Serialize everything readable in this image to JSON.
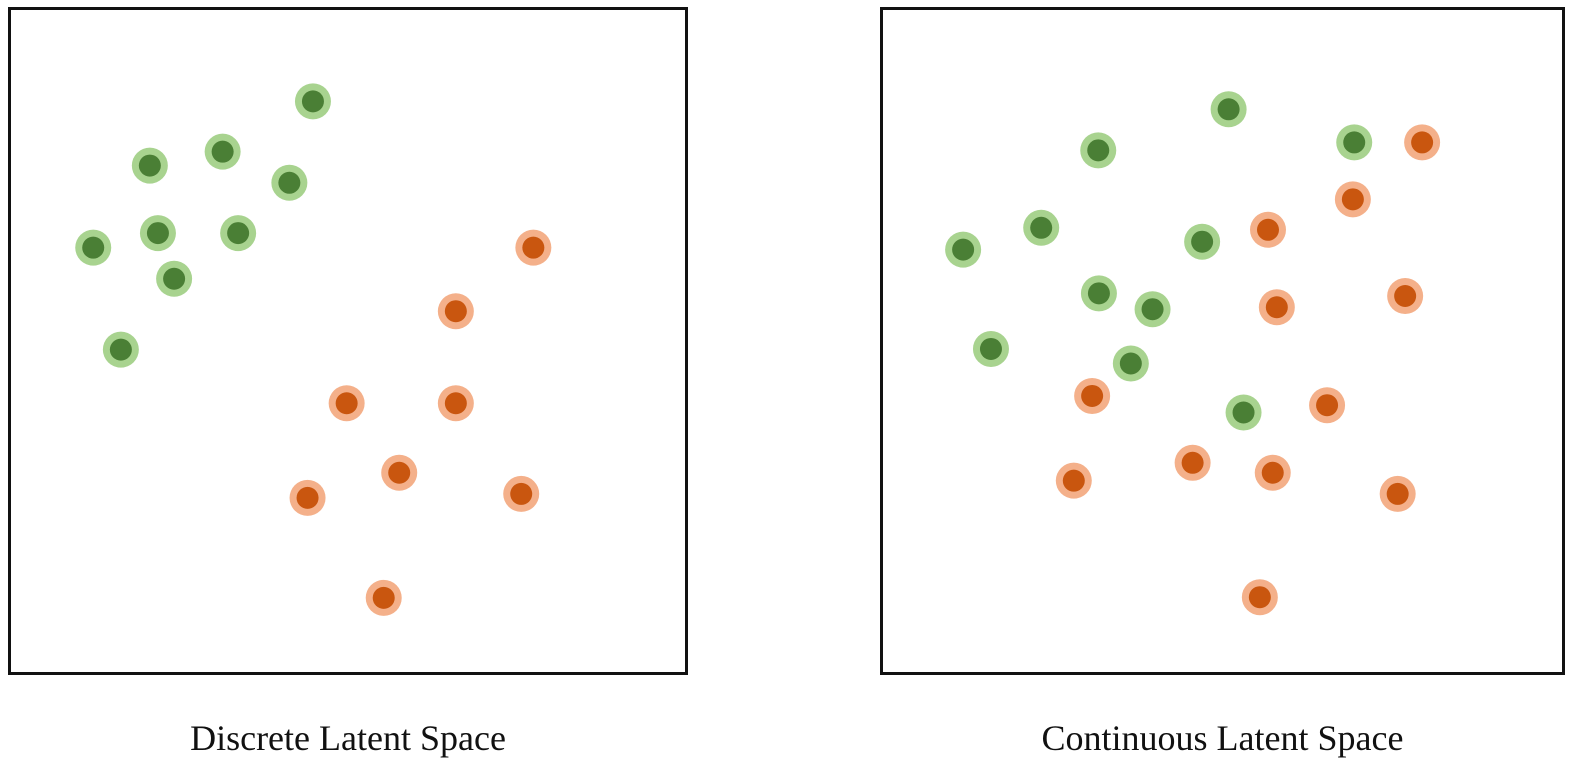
{
  "colors": {
    "green_outer": "#a8d38f",
    "green_inner": "#4a7f35",
    "orange_outer": "#f4b08a",
    "orange_inner": "#c9560f",
    "frame": "#111111",
    "background": "#ffffff"
  },
  "panels": [
    {
      "id": "discrete",
      "caption": "Discrete Latent Space",
      "points": [
        {
          "cls": "green",
          "x": 0.448,
          "y": 0.138
        },
        {
          "cls": "green",
          "x": 0.314,
          "y": 0.214
        },
        {
          "cls": "green",
          "x": 0.206,
          "y": 0.235
        },
        {
          "cls": "green",
          "x": 0.413,
          "y": 0.261
        },
        {
          "cls": "green",
          "x": 0.218,
          "y": 0.337
        },
        {
          "cls": "green",
          "x": 0.337,
          "y": 0.337
        },
        {
          "cls": "green",
          "x": 0.122,
          "y": 0.359
        },
        {
          "cls": "green",
          "x": 0.242,
          "y": 0.406
        },
        {
          "cls": "green",
          "x": 0.163,
          "y": 0.513
        },
        {
          "cls": "orange",
          "x": 0.775,
          "y": 0.359
        },
        {
          "cls": "orange",
          "x": 0.66,
          "y": 0.455
        },
        {
          "cls": "orange",
          "x": 0.498,
          "y": 0.594
        },
        {
          "cls": "orange",
          "x": 0.66,
          "y": 0.594
        },
        {
          "cls": "orange",
          "x": 0.576,
          "y": 0.699
        },
        {
          "cls": "orange",
          "x": 0.44,
          "y": 0.737
        },
        {
          "cls": "orange",
          "x": 0.757,
          "y": 0.731
        },
        {
          "cls": "orange",
          "x": 0.553,
          "y": 0.888
        }
      ]
    },
    {
      "id": "continuous",
      "caption": "Continuous Latent Space",
      "points": [
        {
          "cls": "green",
          "x": 0.509,
          "y": 0.15
        },
        {
          "cls": "green",
          "x": 0.317,
          "y": 0.212
        },
        {
          "cls": "green",
          "x": 0.694,
          "y": 0.2
        },
        {
          "cls": "green",
          "x": 0.233,
          "y": 0.329
        },
        {
          "cls": "green",
          "x": 0.118,
          "y": 0.362
        },
        {
          "cls": "green",
          "x": 0.47,
          "y": 0.35
        },
        {
          "cls": "green",
          "x": 0.318,
          "y": 0.428
        },
        {
          "cls": "green",
          "x": 0.397,
          "y": 0.452
        },
        {
          "cls": "green",
          "x": 0.159,
          "y": 0.512
        },
        {
          "cls": "green",
          "x": 0.365,
          "y": 0.534
        },
        {
          "cls": "green",
          "x": 0.531,
          "y": 0.608
        },
        {
          "cls": "orange",
          "x": 0.794,
          "y": 0.2
        },
        {
          "cls": "orange",
          "x": 0.692,
          "y": 0.286
        },
        {
          "cls": "orange",
          "x": 0.567,
          "y": 0.332
        },
        {
          "cls": "orange",
          "x": 0.58,
          "y": 0.449
        },
        {
          "cls": "orange",
          "x": 0.769,
          "y": 0.432
        },
        {
          "cls": "orange",
          "x": 0.308,
          "y": 0.583
        },
        {
          "cls": "orange",
          "x": 0.654,
          "y": 0.597
        },
        {
          "cls": "orange",
          "x": 0.456,
          "y": 0.684
        },
        {
          "cls": "orange",
          "x": 0.574,
          "y": 0.699
        },
        {
          "cls": "orange",
          "x": 0.281,
          "y": 0.711
        },
        {
          "cls": "orange",
          "x": 0.758,
          "y": 0.731
        },
        {
          "cls": "orange",
          "x": 0.555,
          "y": 0.887
        }
      ]
    }
  ]
}
